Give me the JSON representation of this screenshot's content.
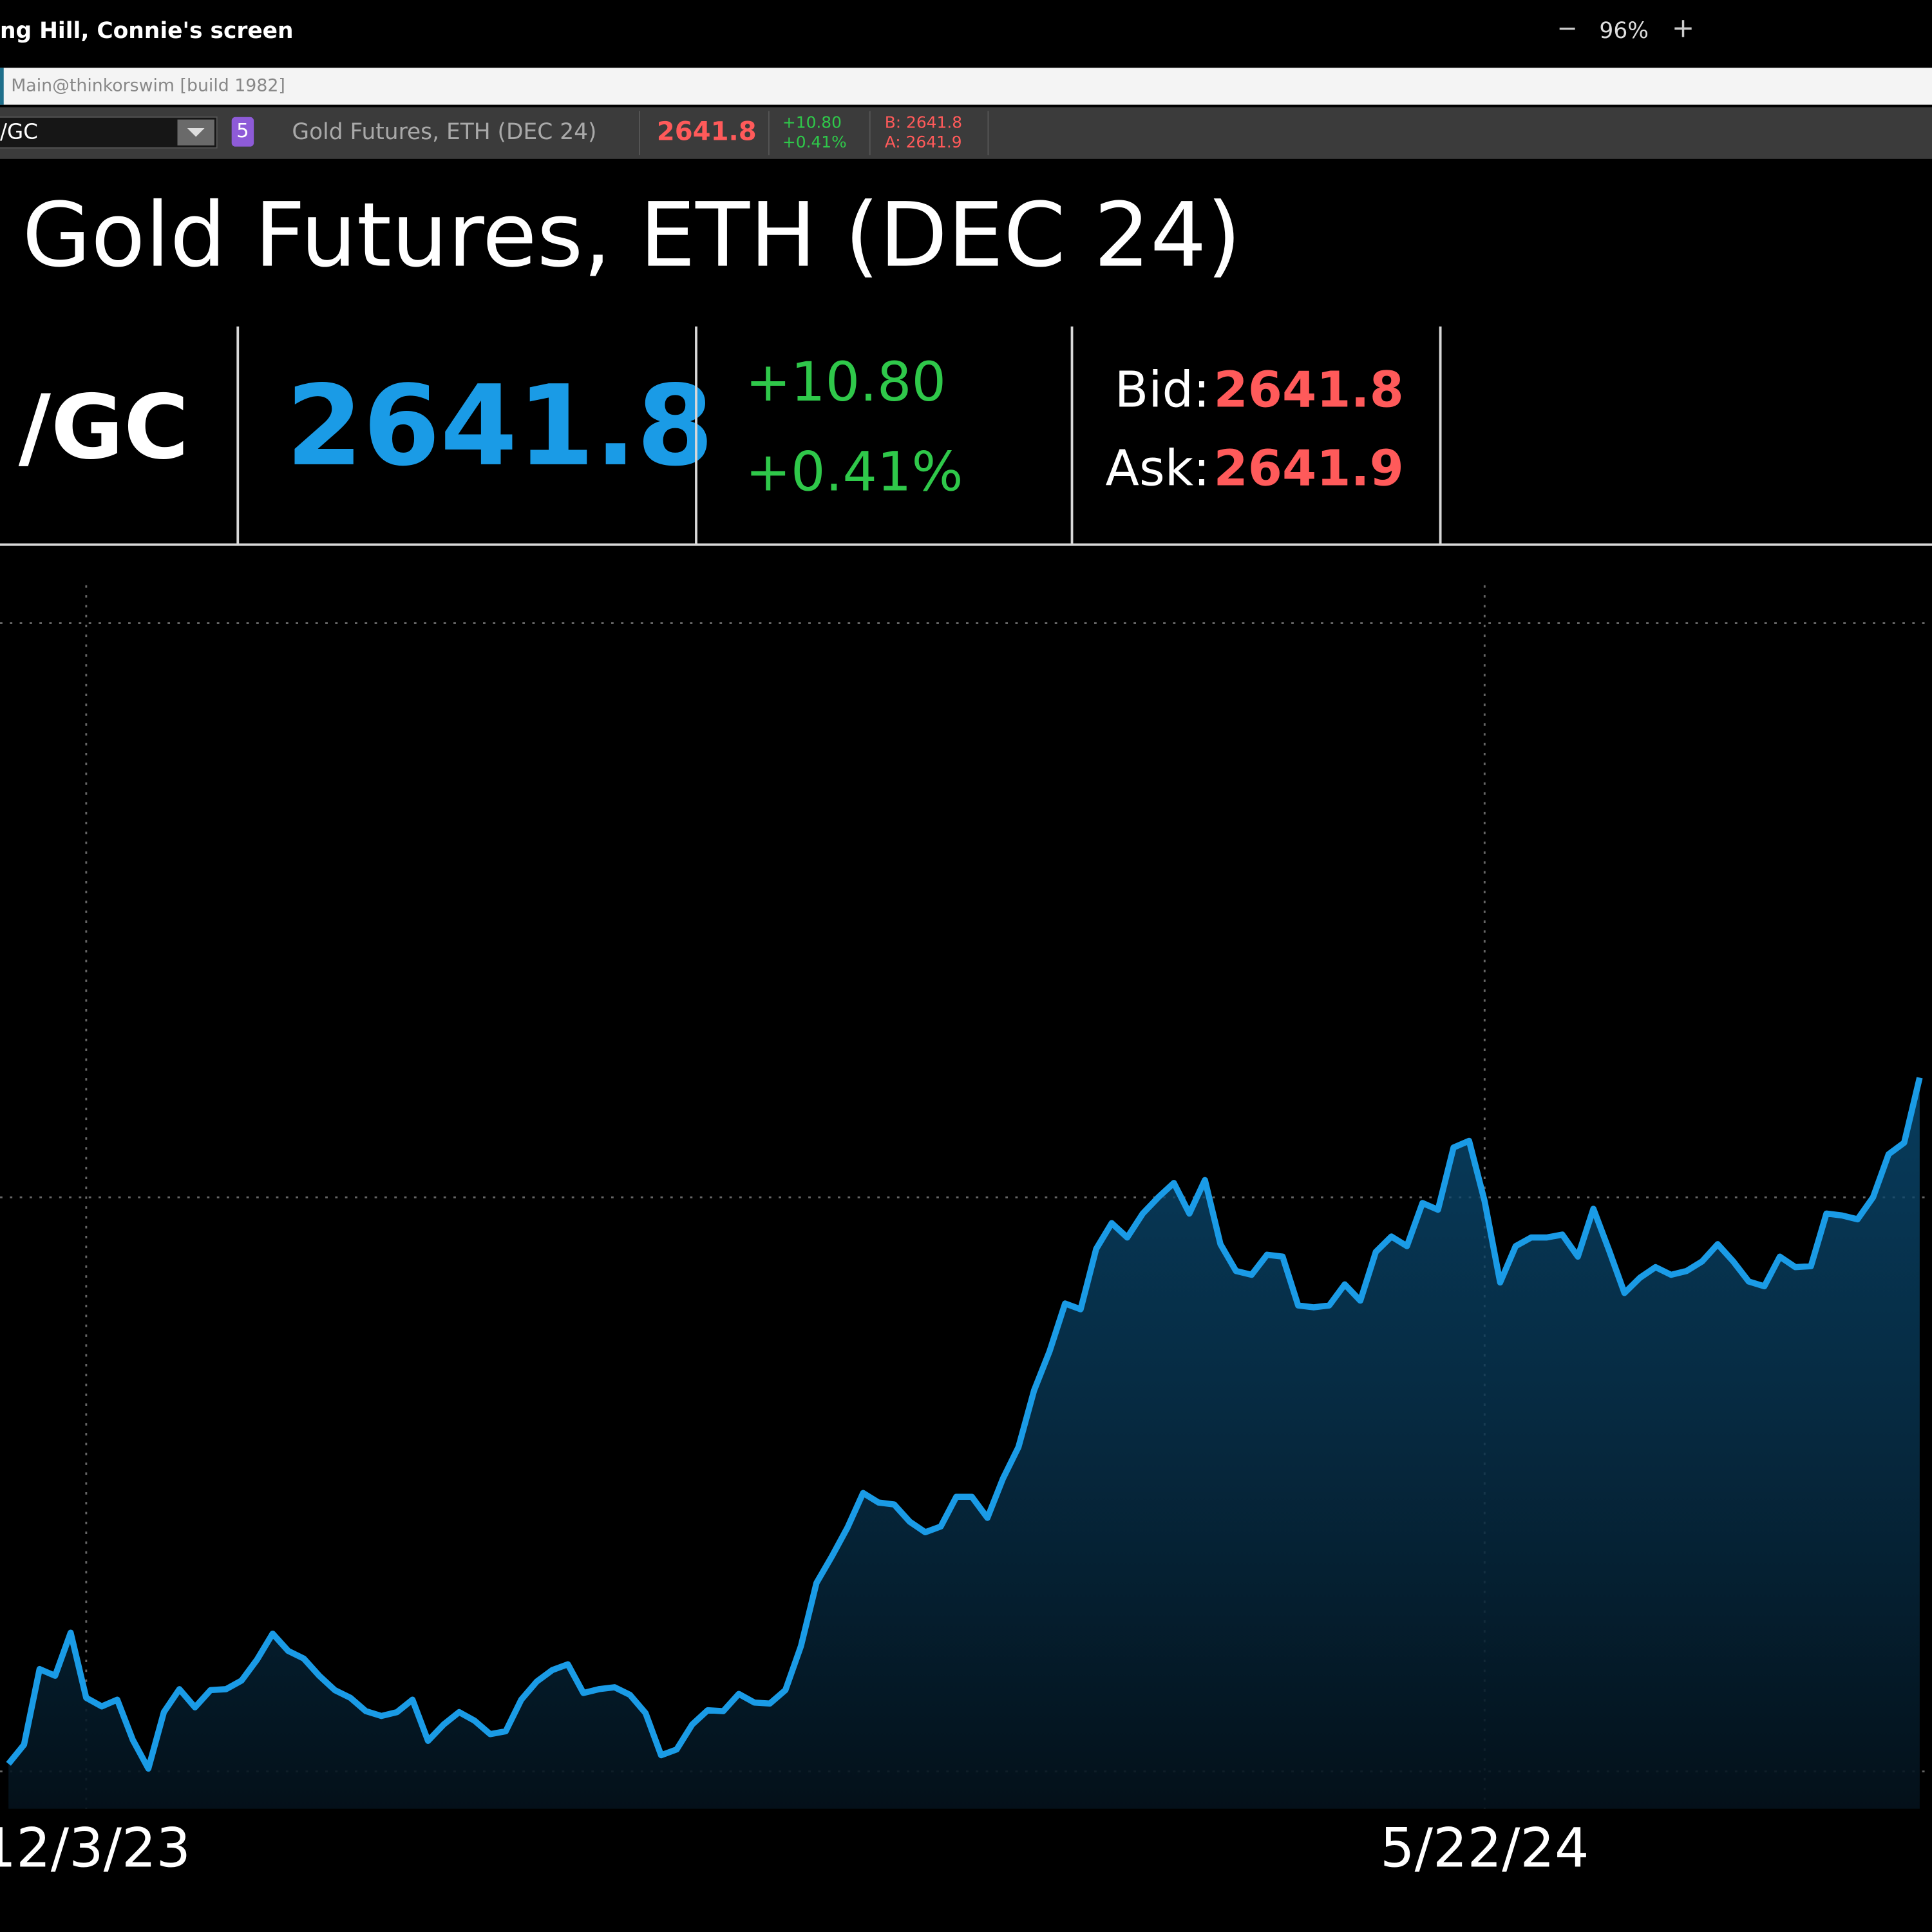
{
  "window": {
    "title": "ng Hill, Connie's screen",
    "zoom_out": "−",
    "zoom": "96%",
    "zoom_in": "+"
  },
  "app_bar": {
    "title": "Main@thinkorswim [build 1982]"
  },
  "toolbar": {
    "symbol": "/GC",
    "link_group": "5",
    "description": "Gold Futures, ETH (DEC 24)",
    "last": "2641.8",
    "change": "+10.80",
    "change_pct": "+0.41%",
    "bid": "B: 2641.8",
    "ask": "A: 2641.9"
  },
  "quote": {
    "title": "Gold Futures, ETH (DEC 24)",
    "symbol": "/GC",
    "last": "2641.8",
    "change": "+10.80",
    "change_pct": "+0.41%",
    "bid_label": "Bid:",
    "bid": "2641.8",
    "ask_label": "Ask:",
    "ask": "2641.9"
  },
  "chart_data": {
    "type": "line",
    "categories": [
      null,
      null,
      null,
      null,
      null,
      "12/3/23",
      null,
      null,
      null,
      null,
      null,
      null,
      null,
      null,
      null,
      null,
      null,
      null,
      null,
      null,
      null,
      null,
      null,
      null,
      null,
      null,
      null,
      null,
      null,
      null,
      null,
      null,
      null,
      null,
      null,
      null,
      null,
      null,
      null,
      null,
      null,
      null,
      null,
      null,
      null,
      null,
      null,
      null,
      null,
      null,
      null,
      null,
      null,
      null,
      null,
      null,
      null,
      null,
      null,
      null,
      null,
      null,
      null,
      null,
      null,
      null,
      null,
      null,
      null,
      null,
      null,
      null,
      null,
      null,
      null,
      null,
      null,
      null,
      null,
      null,
      null,
      null,
      null,
      null,
      null,
      null,
      null,
      null,
      null,
      null,
      null,
      null,
      null,
      null,
      null,
      "5/22/24",
      null,
      null,
      null,
      null,
      null,
      null,
      null,
      null,
      null,
      null,
      null,
      null,
      null,
      null,
      null,
      null,
      null,
      null,
      null,
      null,
      null,
      null,
      null,
      null,
      null,
      null,
      null,
      null
    ],
    "color": "#1a9be6",
    "values": [
      2008,
      2028,
      2107,
      2100,
      2145,
      2077,
      2068,
      2075,
      2033,
      2003,
      2062,
      2086,
      2067,
      2085,
      2086,
      2095,
      2117,
      2144,
      2126,
      2118,
      2100,
      2085,
      2077,
      2063,
      2058,
      2062,
      2075,
      2032,
      2049,
      2062,
      2053,
      2039,
      2042,
      2075,
      2094,
      2106,
      2112,
      2082,
      2086,
      2088,
      2080,
      2061,
      2017,
      2023,
      2049,
      2064,
      2063,
      2081,
      2072,
      2071,
      2085,
      2131,
      2197,
      2225,
      2255,
      2291,
      2281,
      2279,
      2261,
      2250,
      2256,
      2287,
      2287,
      2265,
      2306,
      2339,
      2398,
      2439,
      2489,
      2483,
      2546,
      2573,
      2558,
      2583,
      2600,
      2615,
      2583,
      2618,
      2551,
      2523,
      2519,
      2540,
      2538,
      2487,
      2485,
      2487,
      2509,
      2492,
      2543,
      2559,
      2549,
      2594,
      2587,
      2652,
      2659,
      2596,
      2511,
      2549,
      2558,
      2558,
      2561,
      2538,
      2588,
      2545,
      2500,
      2516,
      2527,
      2519,
      2523,
      2533,
      2551,
      2533,
      2512,
      2507,
      2538,
      2527,
      2528,
      2583,
      2581,
      2577,
      2600,
      2645,
      2657,
      2725
    ],
    "ylim": [
      1961,
      3246
    ],
    "yticks": [
      2000,
      2600,
      3200
    ],
    "grid": true
  }
}
